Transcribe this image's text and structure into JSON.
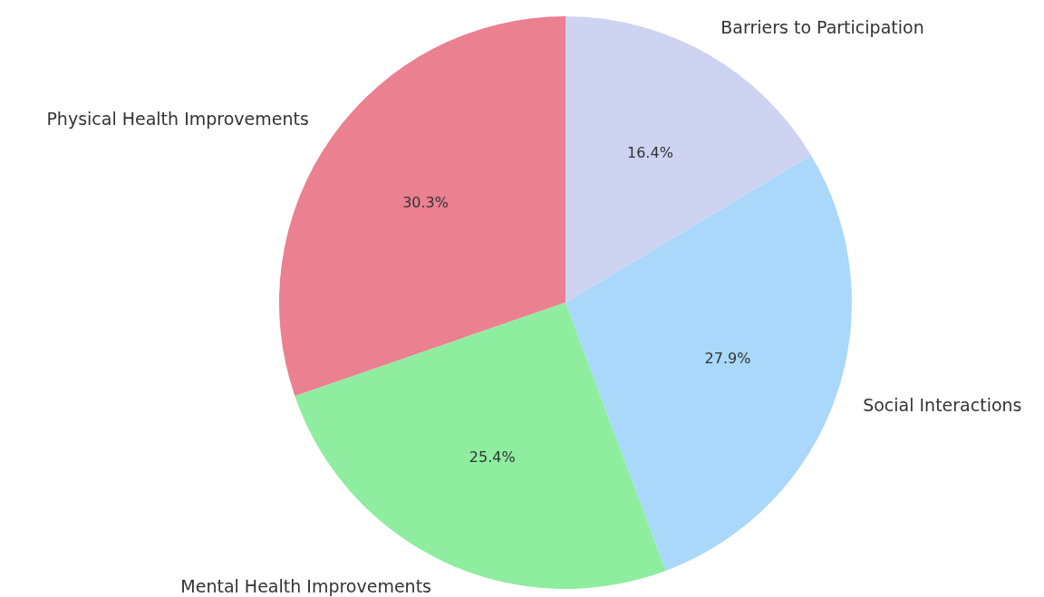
{
  "chart_data": {
    "type": "pie",
    "categories": [
      "Physical Health Improvements",
      "Mental Health Improvements",
      "Social Interactions",
      "Barriers to Participation"
    ],
    "values": [
      30.3,
      25.4,
      27.9,
      16.4
    ],
    "value_labels": [
      "30.3%",
      "25.4%",
      "27.9%",
      "16.4%"
    ],
    "colors": [
      "#ea8090",
      "#8eed9f",
      "#a9d8fa",
      "#cdd3f1"
    ]
  }
}
